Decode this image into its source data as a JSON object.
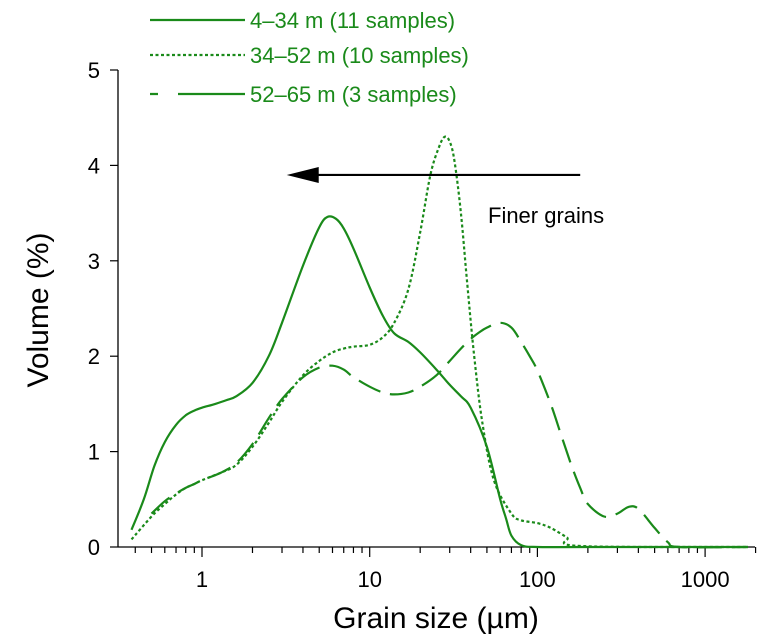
{
  "chart_data": {
    "type": "line",
    "xlabel": "Grain size (µm)",
    "ylabel": "Volume (%)",
    "x_scale": "log",
    "xlim": [
      0.33,
      2000
    ],
    "ylim": [
      0,
      5
    ],
    "x_tick_labels": [
      "1",
      "10",
      "100",
      "1000"
    ],
    "x_tick_values": [
      1,
      10,
      100,
      1000
    ],
    "y_tick_labels": [
      "0",
      "1",
      "2",
      "3",
      "4",
      "5"
    ],
    "y_tick_values": [
      0,
      1,
      2,
      3,
      4,
      5
    ],
    "grid": false,
    "legend_position": "top",
    "color": "#1a8a1a",
    "annotation": {
      "text": "Finer grains",
      "arrow_from_x": 180,
      "arrow_to_x": 3.2,
      "arrow_y": 3.9
    },
    "series": [
      {
        "name": "4–34 m (11 samples)",
        "dash": "solid",
        "x": [
          0.38,
          0.45,
          0.52,
          0.6,
          0.7,
          0.8,
          0.9,
          1.0,
          1.2,
          1.4,
          1.6,
          2.0,
          2.5,
          3.0,
          4.0,
          5.0,
          5.6,
          6.3,
          7.0,
          8.0,
          10,
          12,
          14,
          17,
          20,
          25,
          30,
          35,
          40,
          50,
          60,
          65,
          70,
          80,
          100,
          200,
          1800
        ],
        "y": [
          0.18,
          0.5,
          0.85,
          1.1,
          1.28,
          1.38,
          1.43,
          1.46,
          1.5,
          1.54,
          1.58,
          1.72,
          2.0,
          2.35,
          2.95,
          3.35,
          3.46,
          3.44,
          3.34,
          3.13,
          2.72,
          2.42,
          2.24,
          2.15,
          2.04,
          1.86,
          1.7,
          1.58,
          1.46,
          1.05,
          0.5,
          0.3,
          0.12,
          0.02,
          0,
          0,
          0
        ]
      },
      {
        "name": "34–52 m (10 samples)",
        "dash": "dotted",
        "x": [
          0.38,
          0.5,
          0.6,
          0.7,
          0.8,
          0.9,
          1.0,
          1.3,
          1.6,
          2.0,
          2.5,
          3.0,
          4.0,
          5.0,
          6.0,
          7.0,
          8.0,
          10,
          12,
          14,
          17,
          20,
          23,
          26,
          28,
          30,
          32,
          35,
          38,
          42,
          47,
          55,
          70,
          80,
          100,
          120,
          150,
          180,
          1800
        ],
        "y": [
          0.08,
          0.32,
          0.45,
          0.55,
          0.62,
          0.66,
          0.7,
          0.78,
          0.86,
          1.05,
          1.3,
          1.52,
          1.8,
          1.95,
          2.04,
          2.08,
          2.1,
          2.12,
          2.2,
          2.35,
          2.7,
          3.3,
          3.9,
          4.2,
          4.3,
          4.25,
          4.05,
          3.5,
          2.8,
          2.0,
          1.3,
          0.7,
          0.35,
          0.28,
          0.25,
          0.2,
          0.1,
          0.01,
          0
        ]
      },
      {
        "name": "52–65 m (3 samples)",
        "dash": "dashed",
        "x": [
          0.5,
          0.6,
          0.7,
          0.8,
          0.9,
          1.0,
          1.3,
          1.6,
          2.0,
          2.5,
          3.0,
          4.0,
          5.0,
          6.0,
          7.0,
          8.0,
          10,
          12,
          14,
          17,
          20,
          25,
          30,
          35,
          40,
          45,
          50,
          60,
          70,
          80,
          90,
          100,
          120,
          140,
          160,
          180,
          200,
          250,
          300,
          350,
          400,
          500,
          600,
          700,
          1800
        ],
        "y": [
          0.35,
          0.48,
          0.56,
          0.62,
          0.66,
          0.7,
          0.78,
          0.88,
          1.08,
          1.35,
          1.55,
          1.78,
          1.88,
          1.9,
          1.86,
          1.78,
          1.68,
          1.62,
          1.6,
          1.62,
          1.68,
          1.8,
          1.95,
          2.08,
          2.18,
          2.25,
          2.3,
          2.35,
          2.3,
          2.15,
          2.0,
          1.85,
          1.5,
          1.15,
          0.85,
          0.62,
          0.45,
          0.32,
          0.35,
          0.42,
          0.4,
          0.2,
          0.05,
          0.0,
          0
        ]
      }
    ]
  }
}
